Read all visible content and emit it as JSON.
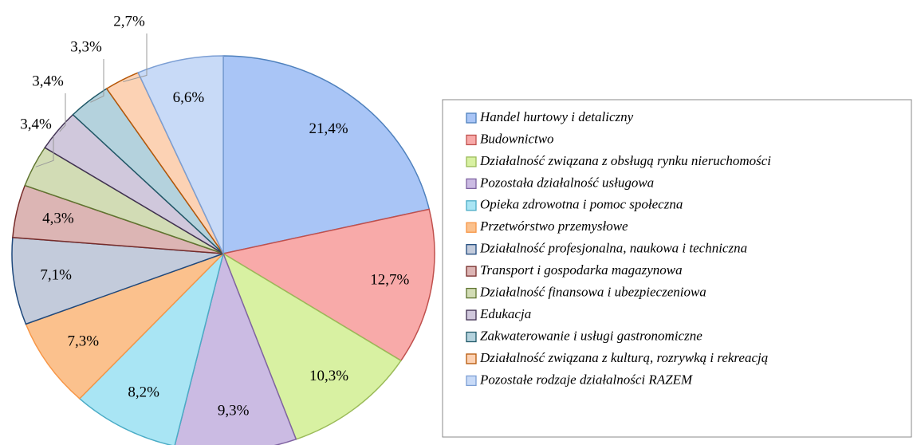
{
  "chart_data": {
    "type": "pie",
    "categories": [
      "Handel hurtowy i detaliczny",
      "Budownictwo",
      "Działalność związana z obsługą rynku nieruchomości",
      "Pozostała działalność usługowa",
      "Opieka zdrowotna i pomoc społeczna",
      "Przetwórstwo przemysłowe",
      "Działalność profesjonalna, naukowa i techniczna",
      "Transport i gospodarka magazynowa",
      "Działalność finansowa i ubezpieczeniowa",
      "Edukacja",
      "Zakwaterowanie i usługi gastronomiczne",
      "Działalność związana z kulturą, rozrywką i rekreacją",
      "Pozostałe rodzaje działalności RAZEM"
    ],
    "values": [
      21.4,
      12.7,
      10.3,
      9.3,
      8.2,
      7.3,
      7.1,
      4.3,
      3.4,
      3.4,
      3.3,
      2.7,
      6.6
    ],
    "value_labels": [
      "21,4%",
      "12,7%",
      "10,3%",
      "9,3%",
      "8,2%",
      "7,3%",
      "7,1%",
      "4,3%",
      "3,4%",
      "3,4%",
      "3,3%",
      "2,7%",
      "6,6%"
    ],
    "colors": [
      "#a9c5f6",
      "#f8aaa9",
      "#d8f1a2",
      "#cbbbe3",
      "#a9e5f4",
      "#fbc18d",
      "#c3cbdb",
      "#dcb5b4",
      "#d2dcb5",
      "#d0c8dc",
      "#b4d2dd",
      "#fcd2b4",
      "#c8daf7"
    ],
    "strokes": [
      "#4f81bd",
      "#c0504d",
      "#9bbb59",
      "#8064a2",
      "#4bacc6",
      "#f79646",
      "#1f497d",
      "#772c2a",
      "#5f7530",
      "#403152",
      "#215968",
      "#b65708",
      "#7c9fd4"
    ],
    "legend": "right"
  }
}
